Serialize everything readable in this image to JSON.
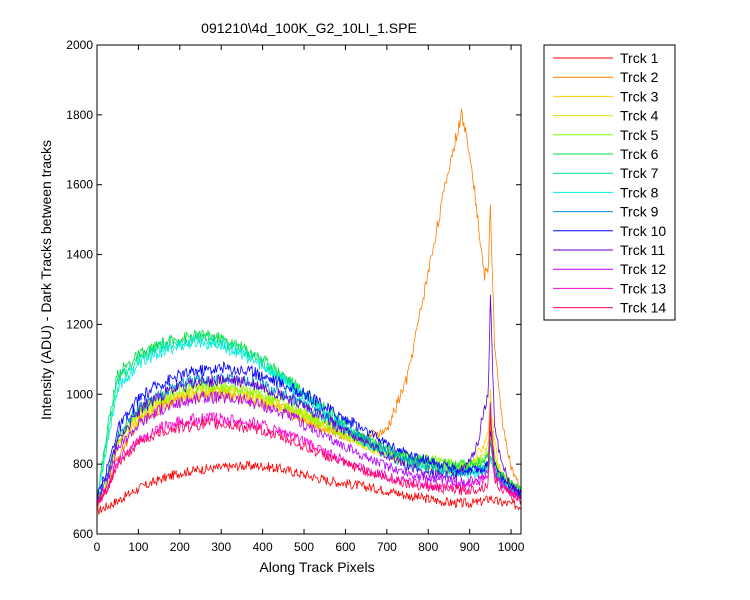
{
  "chart_data": {
    "type": "line",
    "title": "091210\\4d_100K_G2_10LI_1.SPE",
    "xlabel": "Along Track Pixels",
    "ylabel": "Intensity (ADU) - Dark Tracks between tracks",
    "xlim": [
      0,
      1024
    ],
    "ylim": [
      600,
      2000
    ],
    "xticks": [
      0,
      100,
      200,
      300,
      400,
      500,
      600,
      700,
      800,
      900,
      1000
    ],
    "yticks": [
      600,
      800,
      1000,
      1200,
      1400,
      1600,
      1800,
      2000
    ],
    "grid": false,
    "legend_position": "outside-right",
    "x": [
      0,
      25,
      50,
      100,
      150,
      200,
      250,
      300,
      350,
      400,
      450,
      500,
      550,
      600,
      650,
      700,
      750,
      800,
      850,
      880,
      900,
      920,
      935,
      945,
      950,
      960,
      975,
      1000,
      1024
    ],
    "series": [
      {
        "name": "Trck 1",
        "color": "#ff0000",
        "values": [
          665,
          680,
          695,
          730,
          755,
          775,
          785,
          790,
          795,
          795,
          785,
          770,
          755,
          745,
          735,
          725,
          710,
          700,
          690,
          688,
          688,
          690,
          695,
          700,
          705,
          695,
          690,
          685,
          680
        ]
      },
      {
        "name": "Trck 2",
        "color": "#ff7f00",
        "values": [
          680,
          730,
          820,
          920,
          960,
          985,
          995,
          1000,
          990,
          975,
          955,
          930,
          900,
          880,
          875,
          895,
          1050,
          1350,
          1650,
          1800,
          1700,
          1500,
          1340,
          1360,
          1540,
          1150,
          950,
          790,
          720
        ]
      },
      {
        "name": "Trck 3",
        "color": "#ffd000",
        "values": [
          690,
          750,
          850,
          930,
          970,
          990,
          1005,
          1010,
          1000,
          985,
          960,
          935,
          905,
          880,
          850,
          830,
          810,
          795,
          785,
          785,
          795,
          830,
          860,
          900,
          1000,
          860,
          770,
          740,
          720
        ]
      },
      {
        "name": "Trck 4",
        "color": "#d4e600",
        "values": [
          690,
          755,
          860,
          940,
          980,
          1000,
          1015,
          1015,
          1005,
          990,
          965,
          940,
          910,
          880,
          855,
          830,
          810,
          795,
          785,
          782,
          790,
          810,
          835,
          870,
          960,
          830,
          760,
          735,
          715
        ]
      },
      {
        "name": "Trck 5",
        "color": "#80ff00",
        "values": [
          695,
          760,
          870,
          950,
          990,
          1010,
          1025,
          1025,
          1015,
          1000,
          975,
          945,
          915,
          885,
          860,
          840,
          825,
          815,
          805,
          800,
          800,
          805,
          810,
          830,
          900,
          810,
          770,
          745,
          725
        ]
      },
      {
        "name": "Trck 6",
        "color": "#00e040",
        "values": [
          700,
          900,
          1060,
          1110,
          1140,
          1160,
          1170,
          1160,
          1135,
          1100,
          1055,
          1005,
          960,
          915,
          875,
          845,
          820,
          810,
          800,
          798,
          800,
          805,
          810,
          825,
          860,
          800,
          770,
          745,
          725
        ]
      },
      {
        "name": "Trck 7",
        "color": "#00e090",
        "values": [
          700,
          880,
          1040,
          1100,
          1135,
          1150,
          1160,
          1150,
          1125,
          1090,
          1045,
          995,
          950,
          905,
          865,
          835,
          810,
          795,
          785,
          780,
          782,
          786,
          790,
          800,
          830,
          780,
          750,
          735,
          720
        ]
      },
      {
        "name": "Trck 8",
        "color": "#00f0e0",
        "values": [
          700,
          860,
          1020,
          1085,
          1120,
          1140,
          1150,
          1140,
          1115,
          1080,
          1040,
          990,
          945,
          900,
          860,
          825,
          800,
          785,
          775,
          772,
          772,
          775,
          780,
          790,
          810,
          770,
          745,
          730,
          715
        ]
      },
      {
        "name": "Trck 9",
        "color": "#0090d0",
        "values": [
          695,
          770,
          880,
          960,
          1000,
          1030,
          1040,
          1045,
          1040,
          1025,
          1000,
          970,
          935,
          900,
          870,
          840,
          815,
          795,
          780,
          775,
          775,
          780,
          790,
          805,
          850,
          780,
          750,
          725,
          710
        ]
      },
      {
        "name": "Trck 10",
        "color": "#0000ff",
        "values": [
          700,
          790,
          900,
          985,
          1030,
          1055,
          1070,
          1075,
          1070,
          1055,
          1030,
          1000,
          965,
          930,
          895,
          860,
          830,
          810,
          790,
          782,
          782,
          785,
          790,
          800,
          900,
          800,
          765,
          735,
          715
        ]
      },
      {
        "name": "Trck 11",
        "color": "#6000d0",
        "values": [
          695,
          770,
          870,
          950,
          995,
          1020,
          1035,
          1040,
          1035,
          1020,
          995,
          965,
          930,
          895,
          860,
          825,
          795,
          775,
          765,
          775,
          810,
          860,
          960,
          1000,
          1280,
          920,
          810,
          740,
          710
        ]
      },
      {
        "name": "Trck 12",
        "color": "#b000ff",
        "values": [
          690,
          750,
          845,
          915,
          955,
          975,
          990,
          990,
          985,
          970,
          945,
          915,
          880,
          850,
          820,
          795,
          775,
          760,
          750,
          748,
          750,
          755,
          765,
          780,
          960,
          780,
          745,
          725,
          705
        ]
      },
      {
        "name": "Trck 13",
        "color": "#ff00d0",
        "values": [
          680,
          730,
          810,
          870,
          900,
          920,
          930,
          930,
          925,
          910,
          890,
          865,
          835,
          810,
          785,
          765,
          750,
          740,
          735,
          735,
          740,
          748,
          755,
          770,
          950,
          770,
          740,
          720,
          700
        ]
      },
      {
        "name": "Trck 14",
        "color": "#ff0060",
        "values": [
          680,
          725,
          800,
          860,
          890,
          905,
          915,
          915,
          908,
          895,
          875,
          850,
          825,
          800,
          780,
          760,
          745,
          735,
          728,
          725,
          725,
          730,
          735,
          745,
          930,
          760,
          730,
          712,
          698
        ]
      }
    ]
  }
}
